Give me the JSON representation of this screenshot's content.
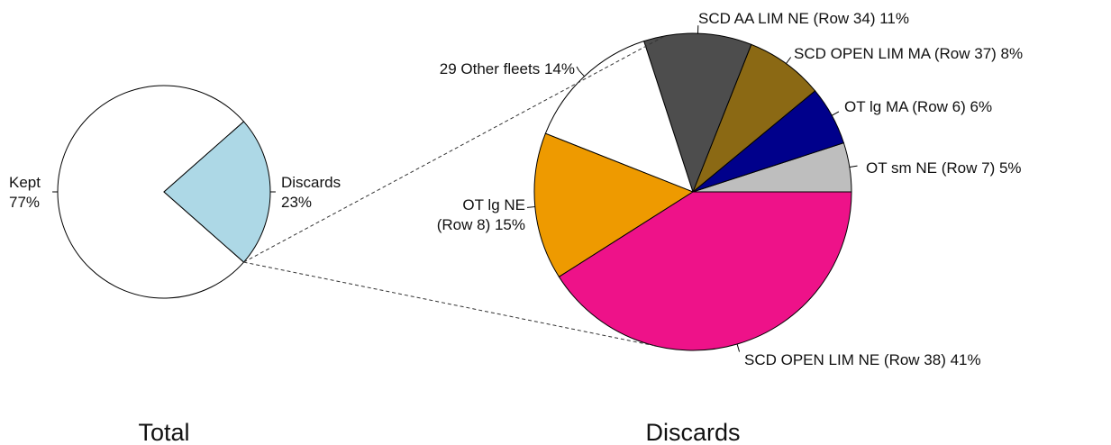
{
  "chart_data": [
    {
      "type": "pie",
      "title": "Total",
      "slices": [
        {
          "label": "Kept",
          "pct_label": "77%",
          "value": 77,
          "color": "#ffffff"
        },
        {
          "label": "Discards",
          "pct_label": "23%",
          "value": 23,
          "color": "#add8e6"
        }
      ]
    },
    {
      "type": "pie",
      "title": "Discards",
      "slices": [
        {
          "label": "OT sm NE (Row 7) 5%",
          "value": 5,
          "color": "#bebebe"
        },
        {
          "label": "OT lg MA (Row 6) 6%",
          "value": 6,
          "color": "#00008b"
        },
        {
          "label": "SCD OPEN LIM MA (Row 37) 8%",
          "value": 8,
          "color": "#8b6914"
        },
        {
          "label": "SCD AA LIM NE (Row 34) 11%",
          "value": 11,
          "color": "#4d4d4d"
        },
        {
          "label": "29 Other fleets 14%",
          "value": 14,
          "color": "#ffffff"
        },
        {
          "label": "OT lg NE",
          "label2": "(Row 8) 15%",
          "value": 15,
          "color": "#ee9a00"
        },
        {
          "label": "SCD OPEN LIM NE (Row 38) 41%",
          "value": 41,
          "color": "#ee1289"
        }
      ]
    }
  ]
}
